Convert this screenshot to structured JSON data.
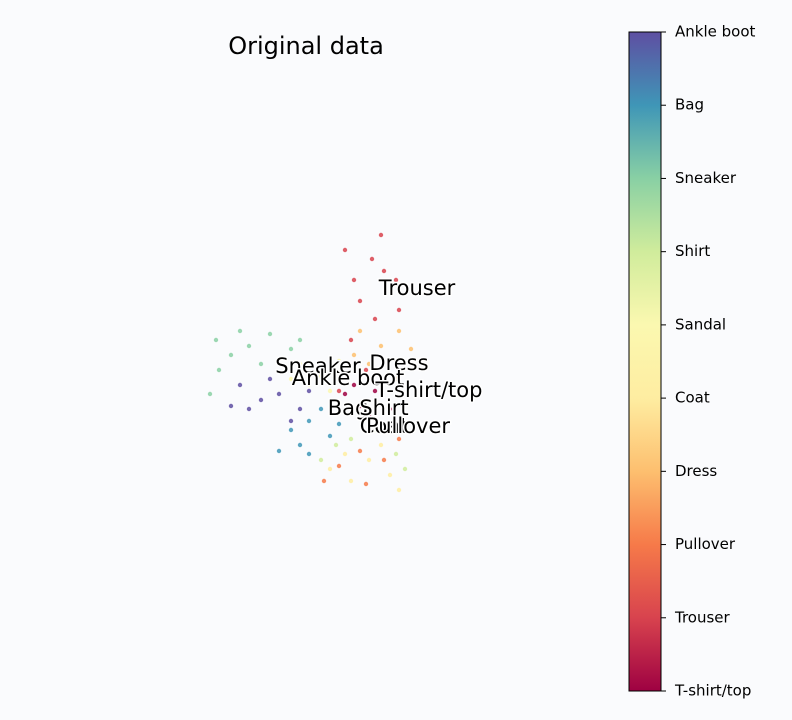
{
  "chart_data": {
    "type": "scatter",
    "title": "Original data",
    "xlim": [
      0,
      10
    ],
    "ylim": [
      0,
      10
    ],
    "series": [
      {
        "name": "T-shirt/top",
        "color": "#9e0142",
        "x": [
          5.5,
          6.0,
          6.5,
          7.0,
          5.8,
          6.3
        ],
        "y": [
          4.2,
          3.8,
          4.3,
          3.7,
          4.5,
          3.5
        ]
      },
      {
        "name": "Trouser",
        "color": "#d8434e",
        "x": [
          6.7,
          6.4,
          6.8,
          6.0,
          6.5,
          5.7,
          7.2,
          5.5,
          6.2,
          5.3,
          7.3,
          5.8
        ],
        "y": [
          9.5,
          8.7,
          8.3,
          7.3,
          6.7,
          6.0,
          8.0,
          9.0,
          5.0,
          4.3,
          7.0,
          8.0
        ]
      },
      {
        "name": "Pullover",
        "color": "#f67a49",
        "x": [
          5.3,
          6.0,
          6.8,
          7.3,
          4.8,
          6.2
        ],
        "y": [
          1.8,
          2.3,
          2.0,
          2.7,
          1.3,
          1.2
        ]
      },
      {
        "name": "Dress",
        "color": "#fdbf6f",
        "x": [
          6.0,
          6.7,
          7.3,
          6.3,
          7.2,
          5.8,
          7.7
        ],
        "y": [
          6.3,
          5.8,
          6.3,
          5.2,
          4.7,
          5.5,
          5.7
        ]
      },
      {
        "name": "Coat",
        "color": "#feeda1",
        "x": [
          5.0,
          5.7,
          6.3,
          7.0,
          7.3,
          5.5,
          6.7
        ],
        "y": [
          1.7,
          1.3,
          2.0,
          1.5,
          1.0,
          2.2,
          2.5
        ]
      },
      {
        "name": "Sandal",
        "color": "#fbf8b0",
        "x": [
          4.0,
          4.7,
          5.3,
          4.3,
          5.0,
          3.7
        ],
        "y": [
          5.2,
          4.8,
          5.3,
          4.5,
          4.3,
          4.7
        ]
      },
      {
        "name": "Shirt",
        "color": "#d0ec9c",
        "x": [
          4.7,
          5.7,
          6.5,
          7.2,
          5.2,
          7.5
        ],
        "y": [
          2.0,
          2.7,
          3.0,
          2.2,
          2.5,
          1.7
        ]
      },
      {
        "name": "Sneaker",
        "color": "#89d0a4",
        "x": [
          1.2,
          1.7,
          2.3,
          3.0,
          1.3,
          3.7,
          2.0,
          2.7,
          4.0,
          1.0
        ],
        "y": [
          6.0,
          5.5,
          5.8,
          6.2,
          5.0,
          5.7,
          6.3,
          5.2,
          6.0,
          4.2
        ]
      },
      {
        "name": "Bag",
        "color": "#3f96b7",
        "x": [
          3.7,
          4.3,
          5.0,
          4.0,
          4.7,
          5.3,
          3.3,
          4.3
        ],
        "y": [
          3.0,
          3.3,
          2.8,
          2.5,
          3.7,
          3.2,
          2.3,
          2.2
        ]
      },
      {
        "name": "Ankle boot",
        "color": "#5e4fa2",
        "x": [
          2.0,
          2.7,
          3.3,
          4.0,
          2.3,
          3.0,
          4.3,
          1.7,
          3.7
        ],
        "y": [
          4.5,
          4.0,
          4.2,
          3.7,
          3.7,
          4.7,
          4.3,
          3.8,
          3.3
        ]
      }
    ],
    "annotations": [
      {
        "text": "Trouser",
        "x": 7.9,
        "y": 7.7
      },
      {
        "text": "Sneaker",
        "x": 4.6,
        "y": 5.1
      },
      {
        "text": "Dress",
        "x": 7.3,
        "y": 5.2
      },
      {
        "text": "Ankle boot",
        "x": 5.6,
        "y": 4.7
      },
      {
        "text": "T-shirt/top",
        "x": 8.3,
        "y": 4.3
      },
      {
        "text": "Bag",
        "x": 5.6,
        "y": 3.7
      },
      {
        "text": "Shirt",
        "x": 6.8,
        "y": 3.7
      },
      {
        "text": "Coat",
        "x": 6.8,
        "y": 3.1
      },
      {
        "text": "Pullover",
        "x": 7.6,
        "y": 3.1
      }
    ]
  }
}
